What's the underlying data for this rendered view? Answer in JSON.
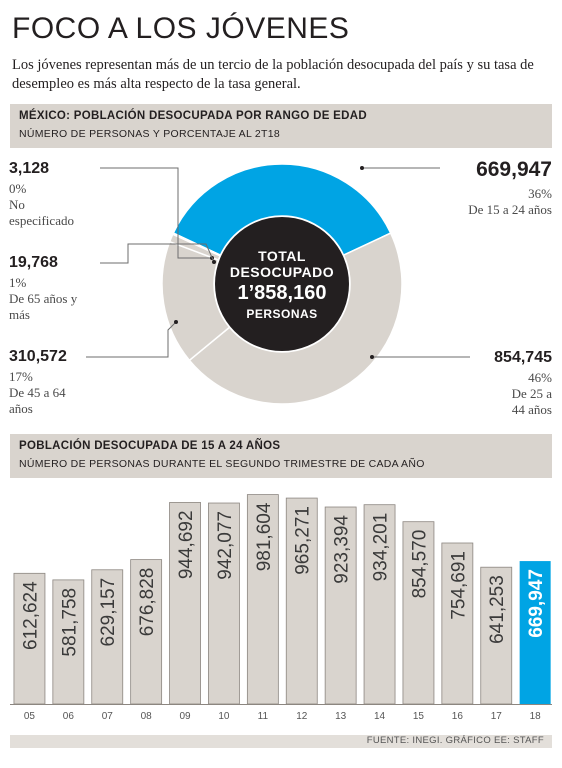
{
  "header": {
    "title": "FOCO A LOS JÓVENES",
    "subtitle": "Los jóvenes representan más de un tercio de la población desocupada del país y su tasa de desempleo es más alta respecto de la tasa general."
  },
  "colors": {
    "accent": "#00a4e4",
    "segment": "#d9d4ce",
    "center": "#231f20",
    "band": "#d9d4ce"
  },
  "chart_data": [
    {
      "type": "pie",
      "title": "MÉXICO: POBLACIÓN DESOCUPADA POR RANGO DE EDAD",
      "subtitle": "NÚMERO DE PERSONAS Y PORCENTAJE AL 2T18",
      "center": {
        "line1": "TOTAL",
        "line2": "DESOCUPADO",
        "value": "1’858,160",
        "line4": "PERSONAS"
      },
      "slices": [
        {
          "name": "De 15 a 24 años",
          "value": 669947,
          "value_label": "669,947",
          "percent": "36%"
        },
        {
          "name": "De 25 a 44 años",
          "value": 854745,
          "value_label": "854,745",
          "percent": "46%"
        },
        {
          "name": "De 45 a 64 años",
          "value": 310572,
          "value_label": "310,572",
          "percent": "17%"
        },
        {
          "name": "De 65 años y más",
          "value": 19768,
          "value_label": "19,768",
          "percent": "1%"
        },
        {
          "name": "No especificado",
          "value": 3128,
          "value_label": "3,128",
          "percent": "0%"
        }
      ]
    },
    {
      "type": "bar",
      "title": "POBLACIÓN DESOCUPADA DE 15 A 24 AÑOS",
      "subtitle": "NÚMERO DE PERSONAS DURANTE EL SEGUNDO TRIMESTRE DE CADA AÑO",
      "categories": [
        "05",
        "06",
        "07",
        "08",
        "09",
        "10",
        "11",
        "12",
        "13",
        "14",
        "15",
        "16",
        "17",
        "18"
      ],
      "values": [
        612624,
        581758,
        629157,
        676828,
        944692,
        942077,
        981604,
        965271,
        923394,
        934201,
        854570,
        754691,
        641253,
        669947
      ],
      "value_labels": [
        "612,624",
        "581,758",
        "629,157",
        "676,828",
        "944,692",
        "942,077",
        "981,604",
        "965,271",
        "923,394",
        "934,201",
        "854,570",
        "754,691",
        "641,253",
        "669,947"
      ],
      "highlight_index": 13
    }
  ],
  "source": "FUENTE: INEGI. GRÁFICO EE: STAFF"
}
